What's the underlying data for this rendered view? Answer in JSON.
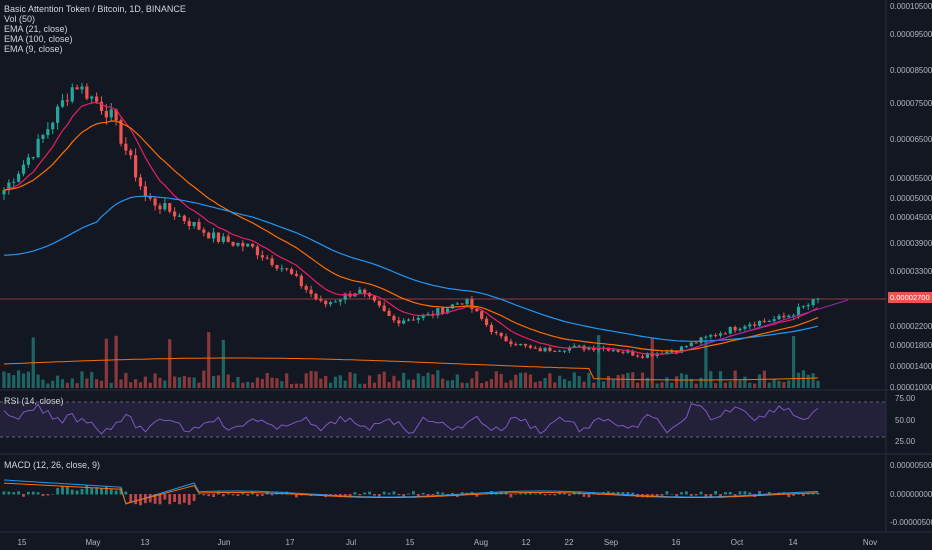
{
  "legend": {
    "title": "Basic Attention Token / Bitcoin, 1D, BINANCE",
    "vol": "Vol (50)",
    "ema21": "EMA (21, close)",
    "ema100": "EMA (100, close)",
    "ema9": "EMA (9, close)"
  },
  "rsi_label": "RSI (14, close)",
  "macd_label": "MACD (12, 26, close, 9)",
  "colors": {
    "background": "#131722",
    "up": "#26a69a",
    "down": "#ef5350",
    "ema9": "#e91e63",
    "ema21": "#ff6d00",
    "ema100": "#2196f3",
    "rsi": "#7e57c2",
    "trendline": "#9c27b0",
    "hline": "#ef5350"
  },
  "chart_data": [
    {
      "type": "candlestick",
      "title": "Basic Attention Token / Bitcoin, 1D, BINANCE",
      "x_labels": [
        "15",
        "May",
        "13",
        "Jun",
        "17",
        "Jul",
        "15",
        "Aug",
        "12",
        "22",
        "Sep",
        "16",
        "Oct",
        "14",
        "Nov"
      ],
      "price_axis_labels": [
        "0.00010500",
        "0.00009500",
        "0.00008500",
        "0.00007500",
        "0.00006500",
        "0.00005500",
        "0.00005000",
        "0.00004500",
        "0.00003900",
        "0.00003300",
        "0.00002700",
        "0.00002200",
        "0.00001800",
        "0.00001400",
        "0.00001000"
      ],
      "last_price_label": "0.00002700",
      "weekly_close": [
        5.2e-05,
        6.4e-05,
        8.1e-05,
        7.2e-05,
        5e-05,
        4.5e-05,
        4e-05,
        3.8e-05,
        3.3e-05,
        2.6e-05,
        2.9e-05,
        2.3e-05,
        2.4e-05,
        2.7e-05,
        1.95e-05,
        1.7e-05,
        1.75e-05,
        1.75e-05,
        1.6e-05,
        1.7e-05,
        2e-05,
        2.25e-05,
        2.35e-05,
        2.7e-05
      ],
      "ema_series": [
        "EMA (9, close)",
        "EMA (21, close)",
        "EMA (100, close)"
      ],
      "horizontal_line": 2.7e-05
    },
    {
      "type": "line",
      "title": "RSI (14, close)",
      "y_labels": [
        "75.00",
        "50.00",
        "25.00"
      ],
      "band": [
        30,
        70
      ]
    },
    {
      "type": "bar",
      "title": "MACD (12, 26, close, 9)",
      "y_labels": [
        "0.00000500",
        "0.00000000",
        "-0.00000500"
      ]
    }
  ]
}
